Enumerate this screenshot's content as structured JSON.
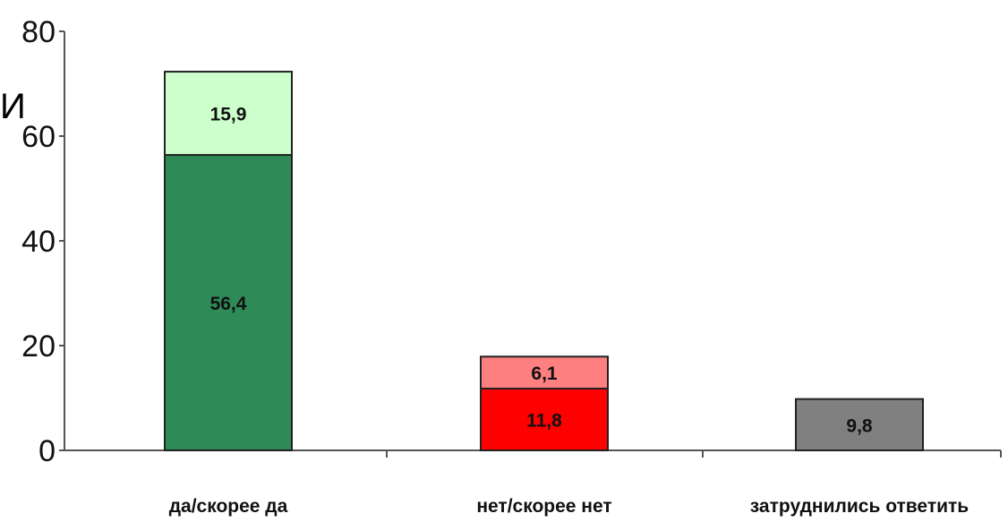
{
  "chart_data": {
    "type": "bar",
    "stacked": true,
    "categories": [
      "да/скорее да",
      "нет/скорее нет",
      "затруднились ответить"
    ],
    "segments": [
      [
        {
          "value": 56.4,
          "label": "56,4",
          "color": "#2e8b57"
        },
        {
          "value": 15.9,
          "label": "15,9",
          "color": "#ccffcc"
        }
      ],
      [
        {
          "value": 11.8,
          "label": "11,8",
          "color": "#ff0000"
        },
        {
          "value": 6.1,
          "label": "6,1",
          "color": "#ff8080"
        }
      ],
      [
        {
          "value": 9.8,
          "label": "9,8",
          "color": "#808080"
        }
      ]
    ],
    "yticks": [
      "0",
      "20",
      "40",
      "60",
      "80"
    ],
    "ylim": [
      0,
      80
    ],
    "grid": false,
    "legend": "none"
  },
  "stray_text": "И"
}
